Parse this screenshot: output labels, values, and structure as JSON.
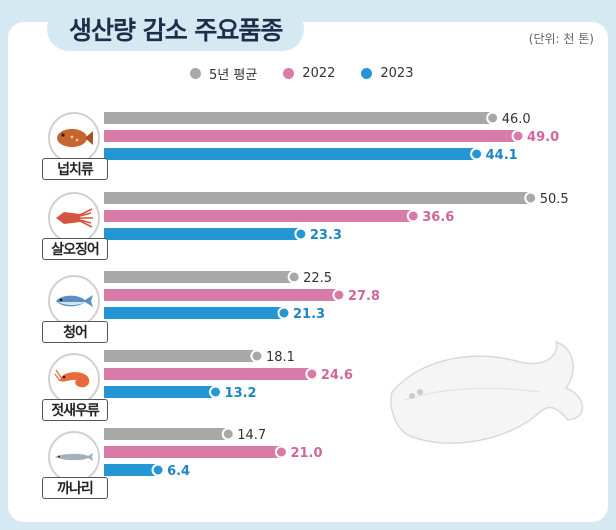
{
  "title": "생산량 감소 주요품종",
  "unit": "(단위: 천 톤)",
  "colors": {
    "avg": "#a8a8a8",
    "y2022": "#d97ba8",
    "y2023": "#2596d4"
  },
  "chart_data": {
    "type": "bar",
    "orientation": "horizontal",
    "categories": [
      "넙치류",
      "살오징어",
      "청어",
      "젓새우류",
      "까나리"
    ],
    "icons": [
      "flatfish-icon",
      "squid-icon",
      "herring-icon",
      "shrimp-icon",
      "sand-lance-icon"
    ],
    "series": [
      {
        "name": "5년 평균",
        "values": [
          46.0,
          50.5,
          22.5,
          18.1,
          14.7
        ],
        "labels": [
          "46.0",
          "50.5",
          "22.5",
          "18.1",
          "14.7"
        ]
      },
      {
        "name": "2022",
        "values": [
          49.0,
          36.6,
          27.8,
          24.6,
          21.0
        ],
        "labels": [
          "49.0",
          "36.6",
          "27.8",
          "24.6",
          "21.0"
        ]
      },
      {
        "name": "2023",
        "values": [
          44.1,
          23.3,
          21.3,
          13.2,
          6.4
        ],
        "labels": [
          "44.1",
          "23.3",
          "21.3",
          "13.2",
          "6.4"
        ]
      }
    ],
    "legend_position": "top-center",
    "grid": false
  }
}
